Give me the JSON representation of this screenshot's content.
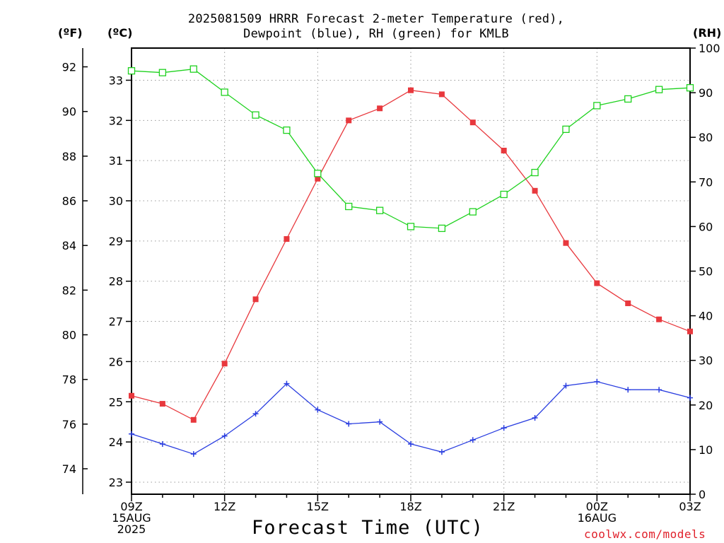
{
  "title": {
    "line1": "2025081509 HRRR Forecast 2-meter Temperature (red),",
    "line2": "Dewpoint (blue), RH (green) for KMLB"
  },
  "units": {
    "left_f": "(ºF)",
    "left_c": "(ºC)",
    "right_rh": "(RH)"
  },
  "x_title": "Forecast Time (UTC)",
  "credit": "coolwx.com/models",
  "colors": {
    "temperature": "#e8383d",
    "dewpoint": "#2a3ee0",
    "rh": "#1fd21f",
    "grid": "#999999",
    "credit": "#e0202a"
  },
  "chart_data": {
    "type": "line",
    "x": [
      "09Z",
      "10Z",
      "11Z",
      "12Z",
      "13Z",
      "14Z",
      "15Z",
      "16Z",
      "17Z",
      "18Z",
      "19Z",
      "20Z",
      "21Z",
      "22Z",
      "23Z",
      "00Z",
      "01Z",
      "02Z",
      "03Z"
    ],
    "x_tick_labels": [
      {
        "hour": "09Z",
        "lines": [
          "09Z",
          "15AUG",
          "2025"
        ]
      },
      {
        "hour": "12Z",
        "lines": [
          "12Z"
        ]
      },
      {
        "hour": "15Z",
        "lines": [
          "15Z"
        ]
      },
      {
        "hour": "18Z",
        "lines": [
          "18Z"
        ]
      },
      {
        "hour": "21Z",
        "lines": [
          "21Z"
        ]
      },
      {
        "hour": "00Z",
        "lines": [
          "00Z",
          "16AUG"
        ]
      },
      {
        "hour": "03Z",
        "lines": [
          "03Z"
        ]
      }
    ],
    "y_left_c": {
      "range": [
        22.7,
        33.8
      ],
      "ticks": [
        23,
        24,
        25,
        26,
        27,
        28,
        29,
        30,
        31,
        32,
        33
      ]
    },
    "y_left_f": {
      "ticks": [
        74,
        76,
        78,
        80,
        82,
        84,
        86,
        88,
        90,
        92
      ]
    },
    "y_right_rh": {
      "range": [
        0,
        100
      ],
      "ticks": [
        0,
        10,
        20,
        30,
        40,
        50,
        60,
        70,
        80,
        90,
        100
      ]
    },
    "grid": true,
    "series": [
      {
        "name": "Temperature",
        "axis": "c",
        "marker": "filled-square",
        "values": [
          25.15,
          24.95,
          24.55,
          25.95,
          27.55,
          29.05,
          30.55,
          32.0,
          32.3,
          32.75,
          32.65,
          31.95,
          31.25,
          30.25,
          28.95,
          27.95,
          27.45,
          27.05,
          26.75
        ]
      },
      {
        "name": "Dewpoint",
        "axis": "c",
        "marker": "plus",
        "values": [
          24.2,
          23.95,
          23.7,
          24.15,
          24.7,
          25.45,
          24.8,
          24.45,
          24.5,
          23.95,
          23.75,
          24.05,
          24.35,
          24.6,
          25.4,
          25.5,
          25.3,
          25.3,
          25.1
        ]
      },
      {
        "name": "RH",
        "axis": "rh",
        "marker": "open-square",
        "values": [
          94.9,
          94.5,
          95.3,
          90.1,
          85.0,
          81.6,
          71.9,
          64.5,
          63.6,
          60.0,
          59.6,
          63.3,
          67.2,
          72.1,
          81.8,
          87.1,
          88.6,
          90.7,
          91.1
        ]
      }
    ]
  }
}
